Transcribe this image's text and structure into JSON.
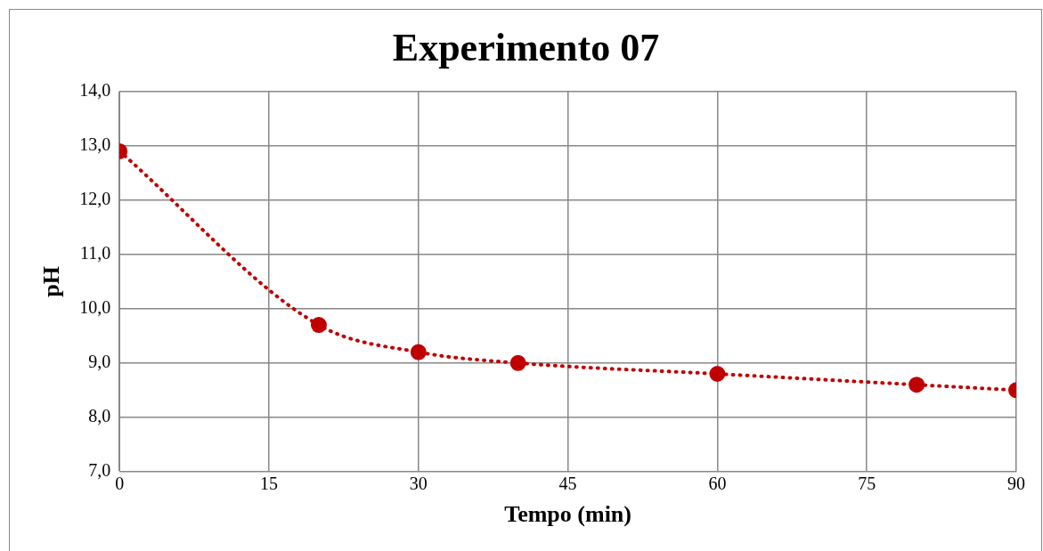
{
  "chart_data": {
    "type": "line",
    "title": "Experimento 07",
    "xlabel": "Tempo (min)",
    "ylabel": "pH",
    "x": [
      0,
      20,
      30,
      40,
      60,
      80,
      90
    ],
    "series": [
      {
        "color": "#c00000",
        "values": [
          12.9,
          9.7,
          9.2,
          9.0,
          8.8,
          8.6,
          8.5
        ]
      }
    ],
    "xlim": [
      0,
      90
    ],
    "xticks": [
      0,
      15,
      30,
      45,
      60,
      75,
      90
    ],
    "ylim": [
      7,
      14
    ],
    "yticks": [
      {
        "value": 7,
        "label": "7,0"
      },
      {
        "value": 8,
        "label": "8,0"
      },
      {
        "value": 9,
        "label": "9,0"
      },
      {
        "value": 10,
        "label": "10,0"
      },
      {
        "value": 11,
        "label": "11,0"
      },
      {
        "value": 12,
        "label": "12,0"
      },
      {
        "value": 13,
        "label": "13,0"
      },
      {
        "value": 14,
        "label": "14,0"
      }
    ],
    "grid": true,
    "legend": false,
    "marker": "circle",
    "line_style": "dotted"
  }
}
